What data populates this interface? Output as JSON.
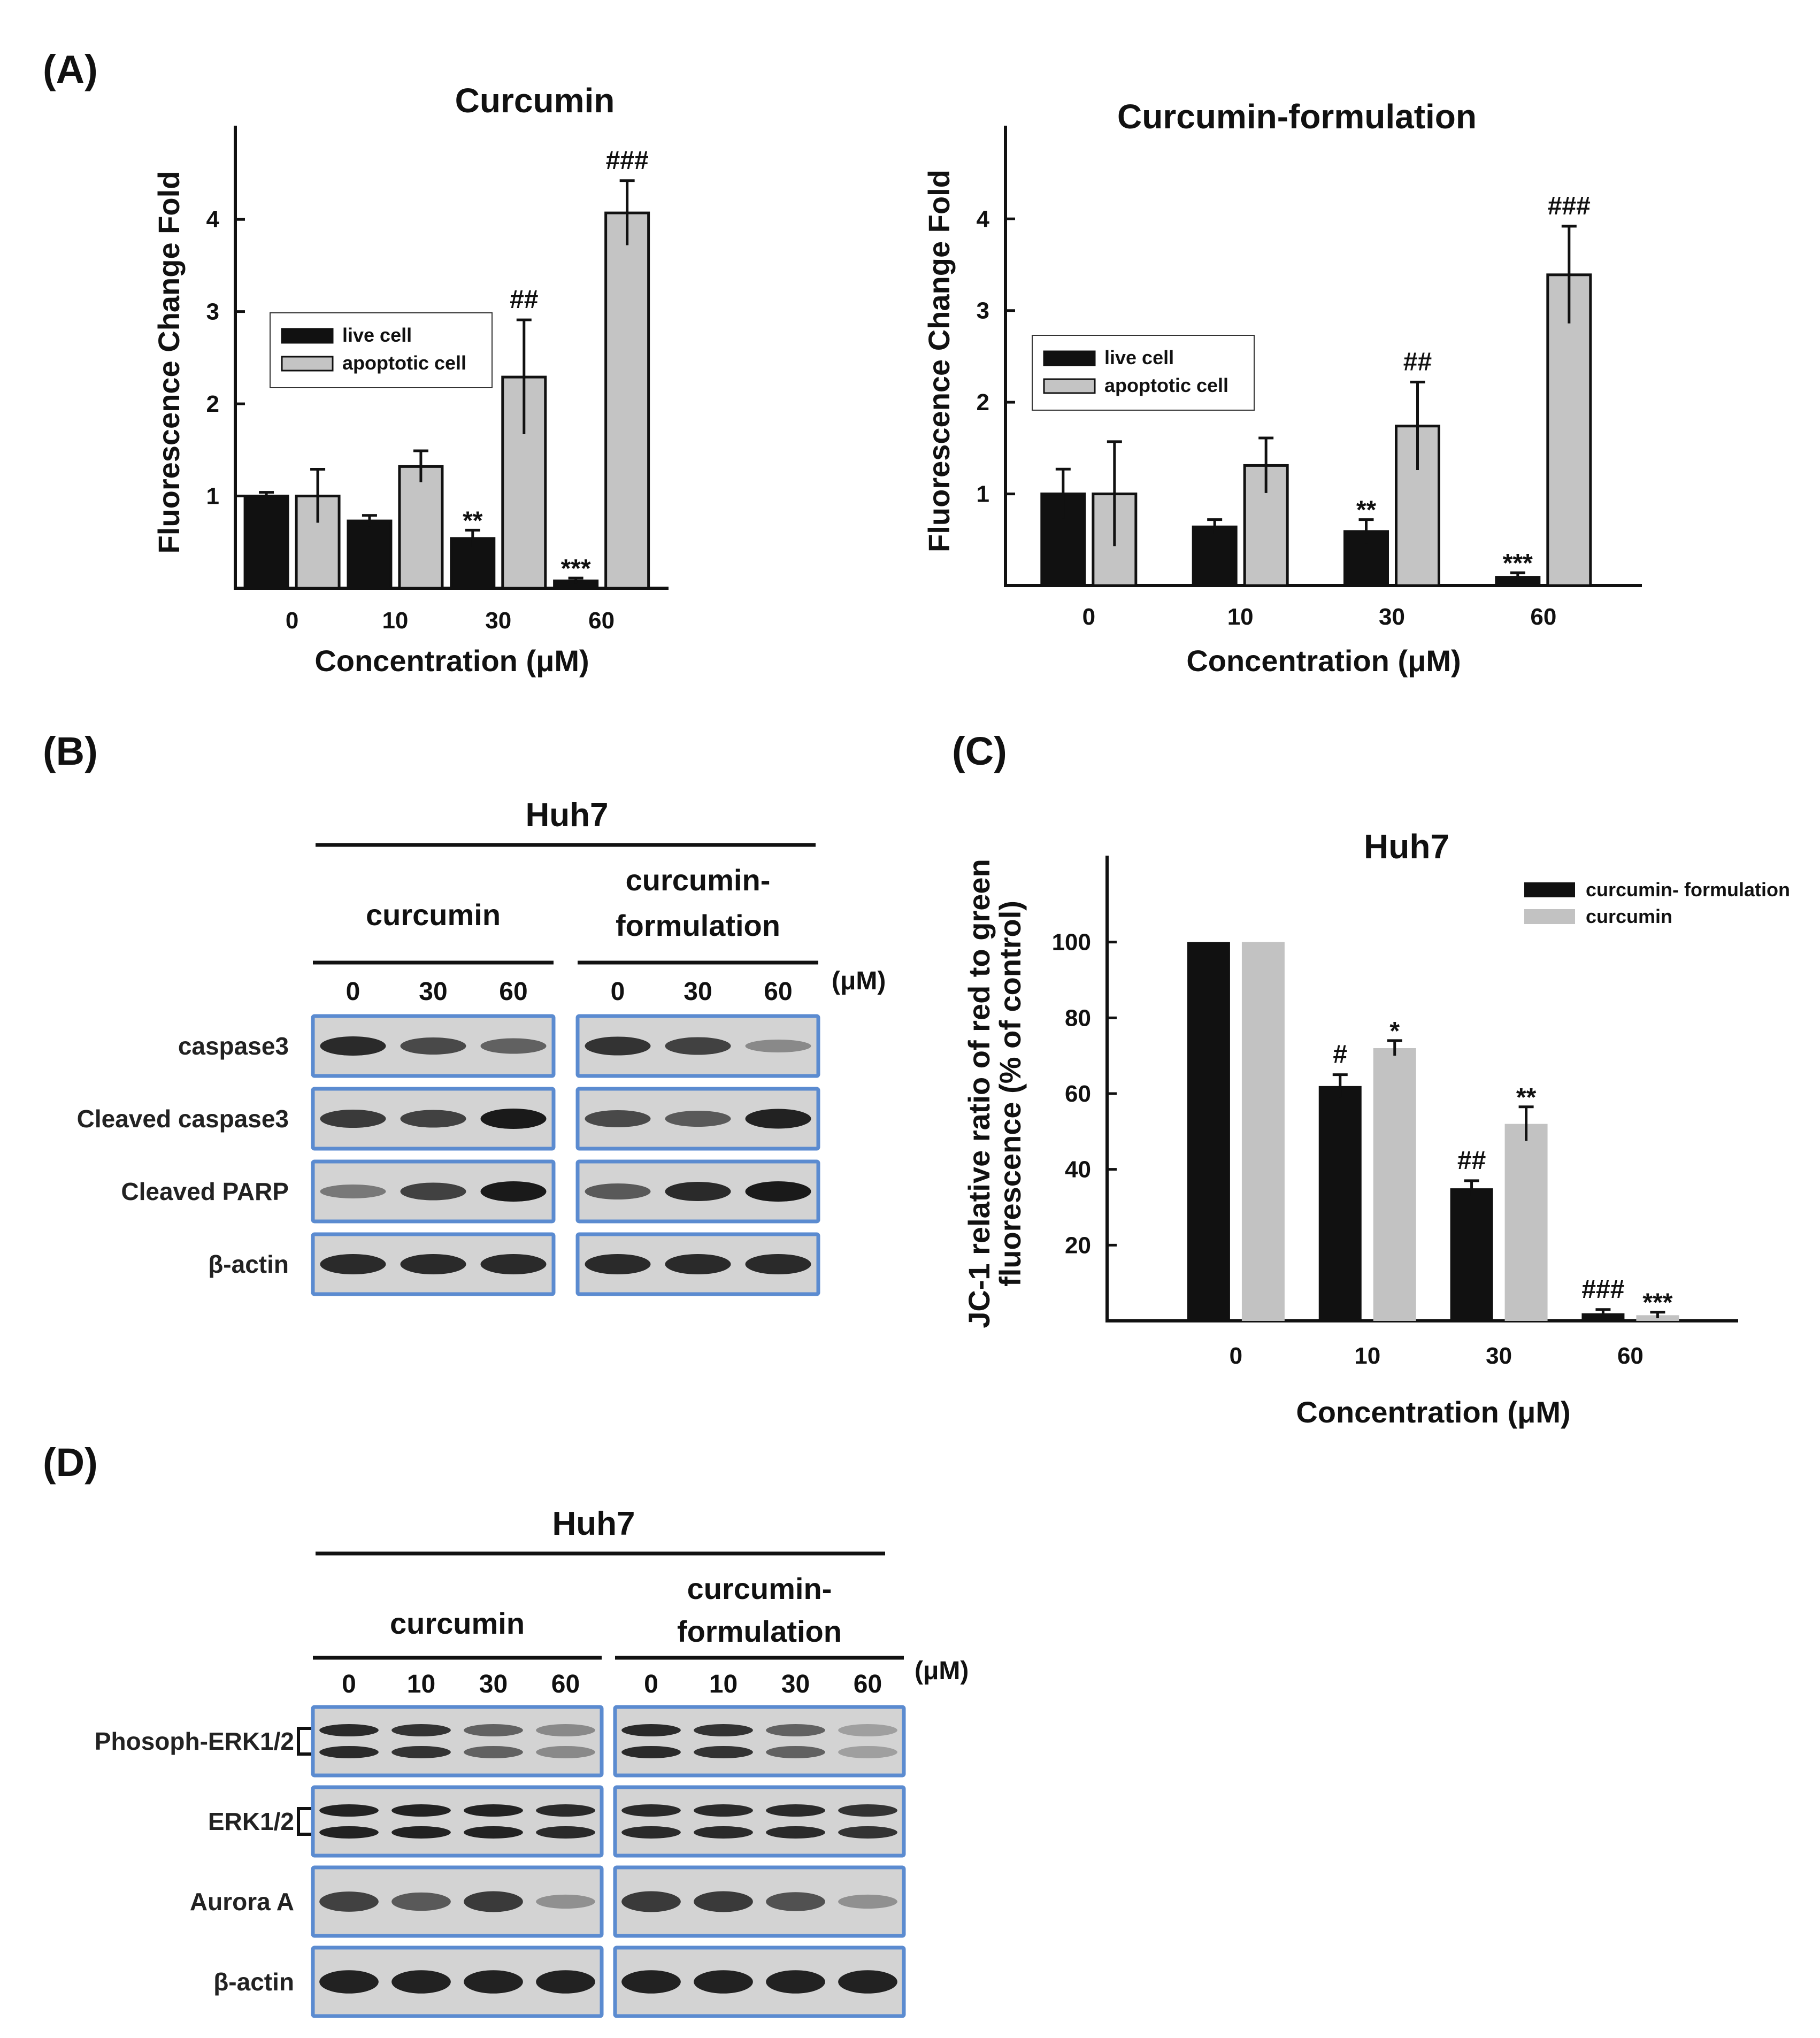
{
  "panels": {
    "A": "(A)",
    "B": "(B)",
    "C": "(C)",
    "D": "(D)"
  },
  "colors": {
    "live": "#111111",
    "apoptotic": "#c4c4c4",
    "formulation": "#111111",
    "curcumin": "#c2c2c2",
    "frame": "#5b8bd0",
    "blot_bg": "#d3d3d3",
    "band": "#1a1a1a"
  },
  "chart_data": [
    {
      "id": "A1",
      "type": "bar",
      "title": "Curcumin",
      "xlabel": "Concentration (μM)",
      "ylabel": "Fluorescence Change Fold",
      "categories": [
        "0",
        "10",
        "30",
        "60"
      ],
      "yticks": [
        "1",
        "2",
        "3",
        "4"
      ],
      "ylim": [
        0,
        4.9
      ],
      "legend_position": "upper-left",
      "series": [
        {
          "name": "live cell",
          "values": [
            1.0,
            0.73,
            0.54,
            0.08
          ],
          "errors": [
            0.04,
            0.06,
            0.09,
            0.03
          ]
        },
        {
          "name": "apoptotic cell",
          "values": [
            1.0,
            1.32,
            2.29,
            4.07
          ],
          "errors": [
            0.29,
            0.17,
            0.62,
            0.35
          ]
        }
      ],
      "annotations": [
        {
          "series": 0,
          "index": 2,
          "text": "**"
        },
        {
          "series": 0,
          "index": 3,
          "text": "***"
        },
        {
          "series": 1,
          "index": 2,
          "text": "##"
        },
        {
          "series": 1,
          "index": 3,
          "text": "###"
        }
      ]
    },
    {
      "id": "A2",
      "type": "bar",
      "title": "Curcumin-formulation",
      "xlabel": "Concentration (μM)",
      "ylabel": "Fluorescence Change Fold",
      "categories": [
        "0",
        "10",
        "30",
        "60"
      ],
      "yticks": [
        "1",
        "2",
        "3",
        "4"
      ],
      "ylim": [
        0,
        4.9
      ],
      "legend_position": "middle-left",
      "series": [
        {
          "name": "live cell",
          "values": [
            1.0,
            0.64,
            0.59,
            0.09
          ],
          "errors": [
            0.27,
            0.08,
            0.13,
            0.05
          ]
        },
        {
          "name": "apoptotic cell",
          "values": [
            1.0,
            1.31,
            1.74,
            3.39
          ],
          "errors": [
            0.57,
            0.3,
            0.48,
            0.53
          ]
        }
      ],
      "annotations": [
        {
          "series": 0,
          "index": 2,
          "text": "**"
        },
        {
          "series": 0,
          "index": 3,
          "text": "***"
        },
        {
          "series": 1,
          "index": 2,
          "text": "##"
        },
        {
          "series": 1,
          "index": 3,
          "text": "###"
        }
      ]
    },
    {
      "id": "C",
      "type": "bar",
      "title": "Huh7",
      "xlabel": "Concentration (μM)",
      "ylabel": [
        "JC-1 relative ratio of red to green",
        "fluorescence (% of control)"
      ],
      "categories": [
        "0",
        "10",
        "30",
        "60"
      ],
      "yticks": [
        "20",
        "40",
        "60",
        "80",
        "100"
      ],
      "ylim": [
        0,
        120
      ],
      "legend_position": "top-right",
      "series": [
        {
          "name": "curcumin- formulation",
          "values": [
            100,
            62,
            35,
            2
          ],
          "errors": [
            0,
            3,
            2,
            1
          ]
        },
        {
          "name": "curcumin",
          "values": [
            100,
            72,
            52,
            1.5
          ],
          "errors": [
            0,
            2,
            4.5,
            0.8
          ]
        }
      ],
      "annotations": [
        {
          "series": 0,
          "index": 1,
          "text": "#"
        },
        {
          "series": 1,
          "index": 1,
          "text": "*"
        },
        {
          "series": 0,
          "index": 2,
          "text": "##"
        },
        {
          "series": 1,
          "index": 2,
          "text": "**"
        },
        {
          "series": 0,
          "index": 3,
          "text": "###"
        },
        {
          "series": 1,
          "index": 3,
          "text": "***"
        }
      ]
    }
  ],
  "blots": {
    "B": {
      "title": "Huh7",
      "unit": "(μM)",
      "groups": [
        {
          "label": [
            "curcumin"
          ],
          "lanes": [
            "0",
            "30",
            "60"
          ]
        },
        {
          "label": [
            "curcumin-",
            "formulation"
          ],
          "lanes": [
            "0",
            "30",
            "60"
          ]
        }
      ],
      "rows": [
        {
          "label": "caspase3",
          "intensity": [
            [
              0.9,
              0.7,
              0.55
            ],
            [
              0.85,
              0.75,
              0.3
            ]
          ]
        },
        {
          "label": "Cleaved caspase3",
          "intensity": [
            [
              0.8,
              0.75,
              1.0
            ],
            [
              0.7,
              0.6,
              0.95
            ]
          ]
        },
        {
          "label": "Cleaved PARP",
          "intensity": [
            [
              0.4,
              0.75,
              1.0
            ],
            [
              0.6,
              0.9,
              1.0
            ]
          ]
        },
        {
          "label": "β-actin",
          "intensity": [
            [
              0.9,
              0.9,
              0.9
            ],
            [
              0.9,
              0.9,
              0.9
            ]
          ]
        }
      ]
    },
    "D": {
      "title": "Huh7",
      "unit": "(μM)",
      "groups": [
        {
          "label": [
            "curcumin"
          ],
          "lanes": [
            "0",
            "10",
            "30",
            "60"
          ]
        },
        {
          "label": [
            "curcumin-",
            "formulation"
          ],
          "lanes": [
            "0",
            "10",
            "30",
            "60"
          ]
        }
      ],
      "rows": [
        {
          "label": "Phosoph-ERK1/2",
          "doublet": true,
          "intensity": [
            [
              0.9,
              0.85,
              0.55,
              0.3
            ],
            [
              0.9,
              0.85,
              0.55,
              0.15
            ]
          ]
        },
        {
          "label": "ERK1/2",
          "doublet": true,
          "intensity": [
            [
              0.95,
              0.95,
              0.95,
              0.9
            ],
            [
              0.9,
              0.9,
              0.9,
              0.85
            ]
          ]
        },
        {
          "label": "Aurora A",
          "intensity": [
            [
              0.75,
              0.6,
              0.8,
              0.25
            ],
            [
              0.8,
              0.8,
              0.65,
              0.25
            ]
          ]
        },
        {
          "label": "β-actin",
          "intensity": [
            [
              0.95,
              0.95,
              0.95,
              0.95
            ],
            [
              0.95,
              0.95,
              0.95,
              0.95
            ]
          ]
        }
      ]
    }
  }
}
